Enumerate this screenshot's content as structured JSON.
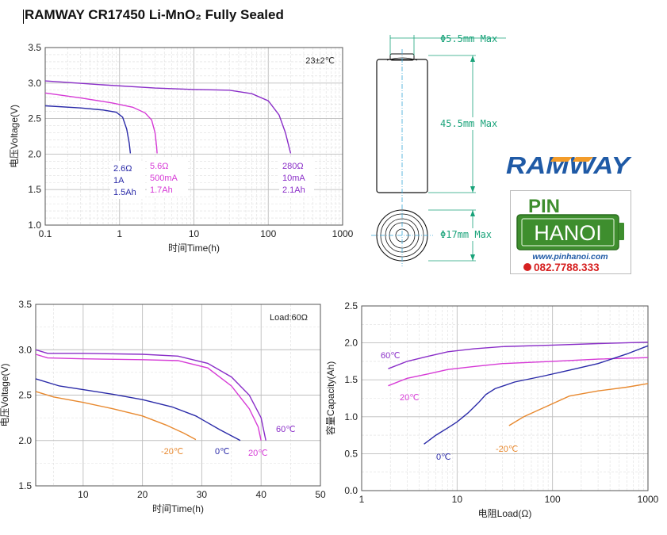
{
  "title": "RAMWAY CR17450 Li-MnO₂ Fully Sealed",
  "brand": {
    "ramway_logo_text": "RAMWAY",
    "pin_text": "PIN",
    "hanoi_text": "HANOI",
    "website": "www.pinhanoi.com",
    "phone": "082.7788.333",
    "colors": {
      "ramway_blue": "#1f5aa6",
      "ramway_orange": "#f39c2a",
      "pin_green": "#3e8e2e",
      "phone_red": "#d62020"
    }
  },
  "drawing": {
    "cap_label": "Φ5.5mm Max",
    "length_label": "45.5mm Max",
    "diameter_label": "Φ17mm Max"
  },
  "chart_data": [
    {
      "type": "line",
      "xscale": "log",
      "xlim": [
        0.1,
        1000
      ],
      "ylim": [
        1.0,
        3.5
      ],
      "xticks": [
        "0.1",
        "1",
        "10",
        "100",
        "1000"
      ],
      "yticks": [
        "1.0",
        "1.5",
        "2.0",
        "2.5",
        "3.0",
        "3.5"
      ],
      "xlabel": "时间Time(h)",
      "ylabel": "电压Voltage(V)",
      "annotation": "23±2℃",
      "series": [
        {
          "color": "#2a2aa8",
          "label_lines": [
            "2.6Ω",
            "1A",
            "1.5Ah"
          ],
          "points": [
            [
              0.1,
              2.68
            ],
            [
              0.3,
              2.65
            ],
            [
              0.6,
              2.62
            ],
            [
              0.9,
              2.59
            ],
            [
              1.1,
              2.52
            ],
            [
              1.25,
              2.35
            ],
            [
              1.35,
              2.15
            ],
            [
              1.4,
              2.01
            ]
          ]
        },
        {
          "color": "#d63ad6",
          "label_lines": [
            "5.6Ω",
            "500mA",
            "1.7Ah"
          ],
          "points": [
            [
              0.1,
              2.86
            ],
            [
              0.3,
              2.79
            ],
            [
              0.8,
              2.72
            ],
            [
              1.5,
              2.66
            ],
            [
              2.2,
              2.58
            ],
            [
              2.7,
              2.48
            ],
            [
              3.0,
              2.3
            ],
            [
              3.15,
              2.1
            ],
            [
              3.2,
              2.01
            ]
          ]
        },
        {
          "color": "#8a2ec8",
          "label_lines": [
            "280Ω",
            "10mA",
            "2.1Ah"
          ],
          "points": [
            [
              0.1,
              3.03
            ],
            [
              0.5,
              2.98
            ],
            [
              3,
              2.93
            ],
            [
              10,
              2.91
            ],
            [
              30,
              2.9
            ],
            [
              60,
              2.85
            ],
            [
              100,
              2.75
            ],
            [
              140,
              2.55
            ],
            [
              170,
              2.3
            ],
            [
              190,
              2.1
            ],
            [
              200,
              2.01
            ]
          ]
        }
      ]
    },
    {
      "type": "line",
      "xlim": [
        2,
        50
      ],
      "ylim": [
        1.5,
        3.5
      ],
      "xticks": [
        "10",
        "20",
        "30",
        "40",
        "50"
      ],
      "yticks": [
        "1.5",
        "2.0",
        "2.5",
        "3.0",
        "3.5"
      ],
      "xlabel": "时间Time(h)",
      "ylabel": "电压Voltage(V)",
      "annotation": "Load:60Ω",
      "series": [
        {
          "name": "60℃",
          "color": "#8a2ec8",
          "points": [
            [
              2,
              3.0
            ],
            [
              4,
              2.96
            ],
            [
              10,
              2.96
            ],
            [
              20,
              2.95
            ],
            [
              26,
              2.93
            ],
            [
              31,
              2.85
            ],
            [
              35,
              2.7
            ],
            [
              38,
              2.5
            ],
            [
              40,
              2.25
            ],
            [
              40.8,
              2.0
            ]
          ]
        },
        {
          "name": "20℃",
          "color": "#d63ad6",
          "points": [
            [
              2,
              2.95
            ],
            [
              4,
              2.91
            ],
            [
              10,
              2.9
            ],
            [
              20,
              2.89
            ],
            [
              26,
              2.88
            ],
            [
              31,
              2.8
            ],
            [
              35,
              2.6
            ],
            [
              38,
              2.35
            ],
            [
              39.5,
              2.15
            ],
            [
              40,
              2.0
            ]
          ]
        },
        {
          "name": "0℃",
          "color": "#2a2aa8",
          "points": [
            [
              2,
              2.68
            ],
            [
              6,
              2.6
            ],
            [
              10,
              2.56
            ],
            [
              15,
              2.51
            ],
            [
              20,
              2.45
            ],
            [
              25,
              2.37
            ],
            [
              29,
              2.27
            ],
            [
              33,
              2.12
            ],
            [
              36.5,
              2.0
            ]
          ]
        },
        {
          "name": "-20℃",
          "color": "#e8892f",
          "points": [
            [
              2,
              2.54
            ],
            [
              5,
              2.48
            ],
            [
              10,
              2.42
            ],
            [
              15,
              2.35
            ],
            [
              20,
              2.27
            ],
            [
              24,
              2.17
            ],
            [
              27,
              2.08
            ],
            [
              29,
              2.01
            ]
          ]
        }
      ]
    },
    {
      "type": "line",
      "xscale": "log",
      "xlim": [
        1,
        1000
      ],
      "ylim": [
        0,
        2.5
      ],
      "xticks": [
        "1",
        "10",
        "100",
        "1000"
      ],
      "yticks": [
        "0.0",
        "0.5",
        "1.0",
        "1.5",
        "2.0",
        "2.5"
      ],
      "xlabel": "电阻Load(Ω)",
      "ylabel": "容量Capacity(Ah)",
      "series": [
        {
          "name": "60℃",
          "color": "#8a2ec8",
          "points": [
            [
              1.9,
              1.65
            ],
            [
              3,
              1.75
            ],
            [
              5,
              1.82
            ],
            [
              8,
              1.88
            ],
            [
              15,
              1.92
            ],
            [
              30,
              1.95
            ],
            [
              100,
              1.97
            ],
            [
              300,
              1.99
            ],
            [
              1000,
              2.01
            ]
          ]
        },
        {
          "name": "20℃",
          "color": "#d63ad6",
          "points": [
            [
              1.9,
              1.42
            ],
            [
              3,
              1.52
            ],
            [
              5,
              1.58
            ],
            [
              8,
              1.64
            ],
            [
              15,
              1.68
            ],
            [
              30,
              1.72
            ],
            [
              100,
              1.75
            ],
            [
              300,
              1.78
            ],
            [
              1000,
              1.8
            ]
          ]
        },
        {
          "name": "0℃",
          "color": "#2a2aa8",
          "points": [
            [
              4.5,
              0.63
            ],
            [
              6,
              0.75
            ],
            [
              8,
              0.85
            ],
            [
              10,
              0.93
            ],
            [
              13,
              1.05
            ],
            [
              17,
              1.2
            ],
            [
              20,
              1.3
            ],
            [
              25,
              1.38
            ],
            [
              40,
              1.47
            ],
            [
              80,
              1.55
            ],
            [
              150,
              1.63
            ],
            [
              300,
              1.72
            ],
            [
              600,
              1.85
            ],
            [
              1000,
              1.96
            ]
          ]
        },
        {
          "name": "-20℃",
          "color": "#e8892f",
          "points": [
            [
              35,
              0.88
            ],
            [
              50,
              1.0
            ],
            [
              80,
              1.12
            ],
            [
              150,
              1.28
            ],
            [
              300,
              1.35
            ],
            [
              600,
              1.4
            ],
            [
              1000,
              1.45
            ]
          ]
        }
      ]
    }
  ]
}
